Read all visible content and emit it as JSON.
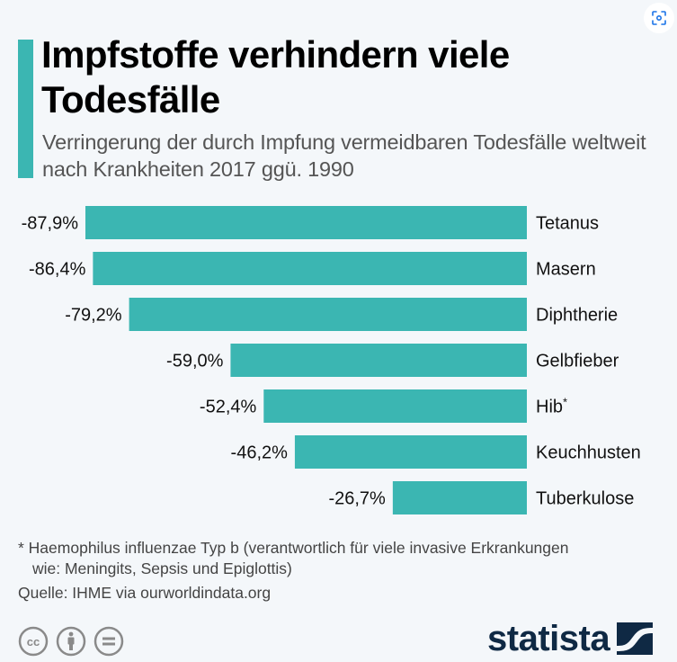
{
  "header": {
    "title": "Impfstoffe verhindern viele Todesfälle",
    "subtitle": "Verringerung der durch Impfung vermeidbaren Todesfälle weltweit nach Krankheiten 2017 ggü. 1990",
    "lens_icon": "visual-search-icon"
  },
  "colors": {
    "accent": "#3bb6b2",
    "bar": "#3bb6b2",
    "background": "#f4f7fa",
    "brand": "#0f2944"
  },
  "chart_data": {
    "type": "bar",
    "orientation": "horizontal",
    "title": "Impfstoffe verhindern viele Todesfälle",
    "subtitle": "Verringerung der durch Impfung vermeidbaren Todesfälle weltweit nach Krankheiten 2017 ggü. 1990",
    "xlabel": "",
    "ylabel": "",
    "unit": "%",
    "categories": [
      "Tetanus",
      "Masern",
      "Diphtherie",
      "Gelbfieber",
      "Hib*",
      "Keuchhusten",
      "Tuberkulose"
    ],
    "values": [
      -87.9,
      -86.4,
      -79.2,
      -59.0,
      -52.4,
      -46.2,
      -26.7
    ],
    "value_labels": [
      "-87,9%",
      "-86,4%",
      "-79,2%",
      "-59,0%",
      "-52,4%",
      "-46,2%",
      "-26,7%"
    ],
    "xlim": [
      -87.9,
      0
    ],
    "grid": false,
    "legend": "none"
  },
  "footer": {
    "note_line1": "* Haemophilus influenzae Typ b (verantwortlich für viele invasive Erkrankungen",
    "note_line2": "wie: Meningits, Sepsis und Epiglottis)",
    "source": "Quelle: IHME via ourworldindata.org",
    "license_icons": [
      "creative-commons-icon",
      "attribution-icon",
      "no-derivatives-icon"
    ],
    "brand": "statista"
  }
}
